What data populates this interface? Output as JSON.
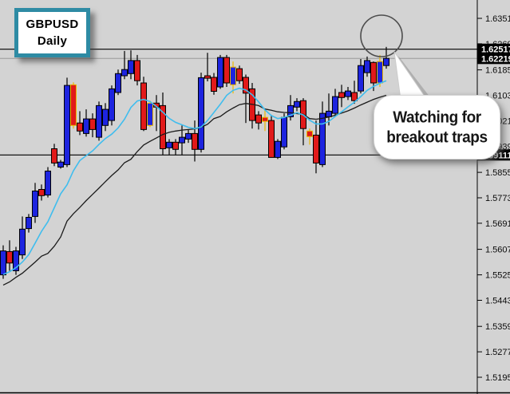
{
  "app": {
    "symbol_label": {
      "line1": "GBPUSD",
      "line2": "Daily"
    },
    "annotation": {
      "bubble_line1": "Watching for",
      "bubble_line2": "breakout traps",
      "circle_note": "breakout-spike-circle"
    }
  },
  "chart_data": {
    "type": "candlestick",
    "title": "GBPUSD Daily",
    "legend_position": "none",
    "grid": false,
    "price_axis": {
      "side": "right",
      "range": [
        1.5195,
        1.6351
      ],
      "ticks": [
        {
          "p": 1.6351,
          "label": "1.63510"
        },
        {
          "p": 1.6269,
          "label": "1.62690"
        },
        {
          "p": 1.6185,
          "label": "1.61850"
        },
        {
          "p": 1.6103,
          "label": "1.61030"
        },
        {
          "p": 1.6021,
          "label": "1.60210"
        },
        {
          "p": 1.5939,
          "label": "1.59390"
        },
        {
          "p": 1.5855,
          "label": "1.58550"
        },
        {
          "p": 1.5773,
          "label": "1.57730"
        },
        {
          "p": 1.5691,
          "label": "1.56910"
        },
        {
          "p": 1.5607,
          "label": "1.56070"
        },
        {
          "p": 1.5525,
          "label": "1.55250"
        },
        {
          "p": 1.5443,
          "label": "1.54430"
        },
        {
          "p": 1.5359,
          "label": "1.53590"
        },
        {
          "p": 1.5277,
          "label": "1.52770"
        },
        {
          "p": 1.5195,
          "label": "1.51950"
        }
      ],
      "markers": [
        {
          "p": 1.62517,
          "label": "1.62517",
          "role": "resistance-level"
        },
        {
          "p": 1.62219,
          "label": "1.62219",
          "role": "current-price"
        },
        {
          "p": 1.59111,
          "label": "1.59111",
          "role": "support-level"
        }
      ]
    },
    "levels": {
      "resistance": 1.62517,
      "current_price": 1.62219,
      "support": 1.59111
    },
    "candles": [
      {
        "o": 1.5525,
        "h": 1.562,
        "l": 1.5512,
        "c": 1.5602,
        "hl": 0
      },
      {
        "o": 1.56,
        "h": 1.5636,
        "l": 1.5538,
        "c": 1.5563,
        "hl": 0
      },
      {
        "o": 1.5538,
        "h": 1.5615,
        "l": 1.5525,
        "c": 1.5602,
        "hl": 0
      },
      {
        "o": 1.5589,
        "h": 1.5713,
        "l": 1.5576,
        "c": 1.5672,
        "hl": 0
      },
      {
        "o": 1.5674,
        "h": 1.5721,
        "l": 1.5661,
        "c": 1.571,
        "hl": 0
      },
      {
        "o": 1.5713,
        "h": 1.5821,
        "l": 1.5692,
        "c": 1.5795,
        "hl": 0
      },
      {
        "o": 1.58,
        "h": 1.5816,
        "l": 1.5764,
        "c": 1.578,
        "hl": 0
      },
      {
        "o": 1.5782,
        "h": 1.5872,
        "l": 1.5774,
        "c": 1.5859,
        "hl": 0
      },
      {
        "o": 1.5931,
        "h": 1.5947,
        "l": 1.5875,
        "c": 1.5885,
        "hl": 0
      },
      {
        "o": 1.5872,
        "h": 1.5895,
        "l": 1.5867,
        "c": 1.5888,
        "hl": 0
      },
      {
        "o": 1.588,
        "h": 1.616,
        "l": 1.5872,
        "c": 1.6135,
        "hl": 0
      },
      {
        "o": 1.6137,
        "h": 1.6145,
        "l": 1.5996,
        "c": 1.6006,
        "hl": 1
      },
      {
        "o": 1.6014,
        "h": 1.6052,
        "l": 1.5975,
        "c": 1.5988,
        "hl": 0
      },
      {
        "o": 1.598,
        "h": 1.6058,
        "l": 1.597,
        "c": 1.6027,
        "hl": 0
      },
      {
        "o": 1.6027,
        "h": 1.6045,
        "l": 1.5968,
        "c": 1.5993,
        "hl": 0
      },
      {
        "o": 1.5968,
        "h": 1.6083,
        "l": 1.5957,
        "c": 1.607,
        "hl": 0
      },
      {
        "o": 1.6006,
        "h": 1.6078,
        "l": 1.5988,
        "c": 1.6058,
        "hl": 0
      },
      {
        "o": 1.6022,
        "h": 1.6135,
        "l": 1.6006,
        "c": 1.6124,
        "hl": 0
      },
      {
        "o": 1.6112,
        "h": 1.6186,
        "l": 1.6104,
        "c": 1.6173,
        "hl": 0
      },
      {
        "o": 1.6166,
        "h": 1.6246,
        "l": 1.6155,
        "c": 1.6186,
        "hl": 0
      },
      {
        "o": 1.6173,
        "h": 1.6248,
        "l": 1.6155,
        "c": 1.6215,
        "hl": 0
      },
      {
        "o": 1.6215,
        "h": 1.6233,
        "l": 1.6135,
        "c": 1.615,
        "hl": 0
      },
      {
        "o": 1.6143,
        "h": 1.6163,
        "l": 1.5988,
        "c": 1.5993,
        "hl": 0
      },
      {
        "o": 1.6006,
        "h": 1.6086,
        "l": 1.6001,
        "c": 1.6078,
        "hl": 1
      },
      {
        "o": 1.6078,
        "h": 1.6104,
        "l": 1.5988,
        "c": 1.6065,
        "hl": 0
      },
      {
        "o": 1.607,
        "h": 1.6112,
        "l": 1.5911,
        "c": 1.5931,
        "hl": 0
      },
      {
        "o": 1.5934,
        "h": 1.5962,
        "l": 1.5911,
        "c": 1.5952,
        "hl": 0
      },
      {
        "o": 1.5952,
        "h": 1.5962,
        "l": 1.5911,
        "c": 1.5929,
        "hl": 0
      },
      {
        "o": 1.595,
        "h": 1.6006,
        "l": 1.5911,
        "c": 1.5968,
        "hl": 0
      },
      {
        "o": 1.5962,
        "h": 1.5993,
        "l": 1.595,
        "c": 1.598,
        "hl": 0
      },
      {
        "o": 1.598,
        "h": 1.6022,
        "l": 1.589,
        "c": 1.5929,
        "hl": 0
      },
      {
        "o": 1.5929,
        "h": 1.6176,
        "l": 1.5919,
        "c": 1.616,
        "hl": 0
      },
      {
        "o": 1.6166,
        "h": 1.624,
        "l": 1.6148,
        "c": 1.6158,
        "hl": 0
      },
      {
        "o": 1.6161,
        "h": 1.6175,
        "l": 1.6105,
        "c": 1.6116,
        "hl": 0
      },
      {
        "o": 1.613,
        "h": 1.6233,
        "l": 1.6124,
        "c": 1.6225,
        "hl": 0
      },
      {
        "o": 1.6225,
        "h": 1.6233,
        "l": 1.613,
        "c": 1.6143,
        "hl": 0
      },
      {
        "o": 1.6137,
        "h": 1.6212,
        "l": 1.6109,
        "c": 1.6194,
        "hl": 1
      },
      {
        "o": 1.6189,
        "h": 1.6199,
        "l": 1.614,
        "c": 1.615,
        "hl": 0
      },
      {
        "o": 1.6161,
        "h": 1.617,
        "l": 1.6014,
        "c": 1.611,
        "hl": 0
      },
      {
        "o": 1.6124,
        "h": 1.6143,
        "l": 1.5996,
        "c": 1.6022,
        "hl": 0
      },
      {
        "o": 1.604,
        "h": 1.6052,
        "l": 1.5993,
        "c": 1.6014,
        "hl": 0
      },
      {
        "o": 1.6032,
        "h": 1.6058,
        "l": 1.5988,
        "c": 1.6019,
        "hl": 1
      },
      {
        "o": 1.6022,
        "h": 1.604,
        "l": 1.5911,
        "c": 1.5903,
        "hl": 0
      },
      {
        "o": 1.5903,
        "h": 1.5962,
        "l": 1.5898,
        "c": 1.5955,
        "hl": 0
      },
      {
        "o": 1.5937,
        "h": 1.6045,
        "l": 1.5929,
        "c": 1.6032,
        "hl": 0
      },
      {
        "o": 1.6034,
        "h": 1.6104,
        "l": 1.6022,
        "c": 1.607,
        "hl": 0
      },
      {
        "o": 1.6065,
        "h": 1.6094,
        "l": 1.6052,
        "c": 1.6083,
        "hl": 0
      },
      {
        "o": 1.6086,
        "h": 1.6094,
        "l": 1.5942,
        "c": 1.5996,
        "hl": 0
      },
      {
        "o": 1.5988,
        "h": 1.5996,
        "l": 1.5944,
        "c": 1.597,
        "hl": 1
      },
      {
        "o": 1.5975,
        "h": 1.6022,
        "l": 1.5852,
        "c": 1.5885,
        "hl": 0
      },
      {
        "o": 1.588,
        "h": 1.6083,
        "l": 1.5872,
        "c": 1.6045,
        "hl": 0
      },
      {
        "o": 1.6034,
        "h": 1.6109,
        "l": 1.6006,
        "c": 1.6052,
        "hl": 0
      },
      {
        "o": 1.6045,
        "h": 1.6124,
        "l": 1.6034,
        "c": 1.6099,
        "hl": 0
      },
      {
        "o": 1.6112,
        "h": 1.6137,
        "l": 1.6065,
        "c": 1.6096,
        "hl": 0
      },
      {
        "o": 1.6099,
        "h": 1.613,
        "l": 1.6088,
        "c": 1.6117,
        "hl": 0
      },
      {
        "o": 1.6112,
        "h": 1.615,
        "l": 1.6076,
        "c": 1.6086,
        "hl": 0
      },
      {
        "o": 1.6117,
        "h": 1.622,
        "l": 1.6109,
        "c": 1.6199,
        "hl": 0
      },
      {
        "o": 1.6176,
        "h": 1.6228,
        "l": 1.6163,
        "c": 1.6215,
        "hl": 0
      },
      {
        "o": 1.6209,
        "h": 1.6212,
        "l": 1.6117,
        "c": 1.6143,
        "hl": 0
      },
      {
        "o": 1.6143,
        "h": 1.6233,
        "l": 1.613,
        "c": 1.6212,
        "hl": 1
      },
      {
        "o": 1.6199,
        "h": 1.6259,
        "l": 1.6189,
        "c": 1.6222,
        "hl": 0
      }
    ],
    "ma_fast": [
      1.5526,
      1.5535,
      1.5548,
      1.5566,
      1.559,
      1.5627,
      1.5665,
      1.5696,
      1.5741,
      1.5786,
      1.5815,
      1.586,
      1.5893,
      1.5909,
      1.5924,
      1.5945,
      1.5964,
      1.5978,
      1.5998,
      1.6026,
      1.6064,
      1.6085,
      1.609,
      1.6083,
      1.6067,
      1.6049,
      1.6029,
      1.6016,
      1.6008,
      1.6,
      1.5996,
      1.6001,
      1.6022,
      1.6048,
      1.6074,
      1.6103,
      1.6119,
      1.6126,
      1.612,
      1.6105,
      1.6082,
      1.6056,
      1.6038,
      1.6028,
      1.6032,
      1.6039,
      1.6047,
      1.604,
      1.6023,
      1.6011,
      1.6011,
      1.6019,
      1.6035,
      1.605,
      1.6066,
      1.6081,
      1.6099,
      1.6119,
      1.6132,
      1.6142,
      1.615
    ],
    "ma_slow": [
      1.5492,
      1.5502,
      1.5517,
      1.553,
      1.5548,
      1.5566,
      1.5585,
      1.5594,
      1.5617,
      1.5647,
      1.5698,
      1.5722,
      1.5742,
      1.5764,
      1.5784,
      1.5804,
      1.5825,
      1.5845,
      1.5863,
      1.5886,
      1.5897,
      1.5922,
      1.5943,
      1.5955,
      1.5966,
      1.5977,
      1.5984,
      1.5988,
      1.5991,
      1.5993,
      1.5995,
      1.6,
      1.601,
      1.6028,
      1.6035,
      1.605,
      1.6062,
      1.6073,
      1.6077,
      1.6074,
      1.607,
      1.6059,
      1.6055,
      1.605,
      1.6048,
      1.6047,
      1.6044,
      1.6042,
      1.6028,
      1.6026,
      1.6029,
      1.6033,
      1.6039,
      1.6046,
      1.6053,
      1.6062,
      1.6072,
      1.6081,
      1.609,
      1.6097,
      1.6103
    ],
    "colors": {
      "background": "#d3d3d3",
      "bull_candle": "#1d24df",
      "bear_candle": "#e11a1a",
      "candle_border": "#000000",
      "highlight": "#edb800",
      "ma_fast": "#3fbdee",
      "ma_slow": "#1a1a1a",
      "level_line": "#000000",
      "current_price_line": "#9a9a9a",
      "marker_bg": "#000000",
      "marker_text": "#ffffff",
      "axis_text": "#0a0a0a"
    }
  }
}
